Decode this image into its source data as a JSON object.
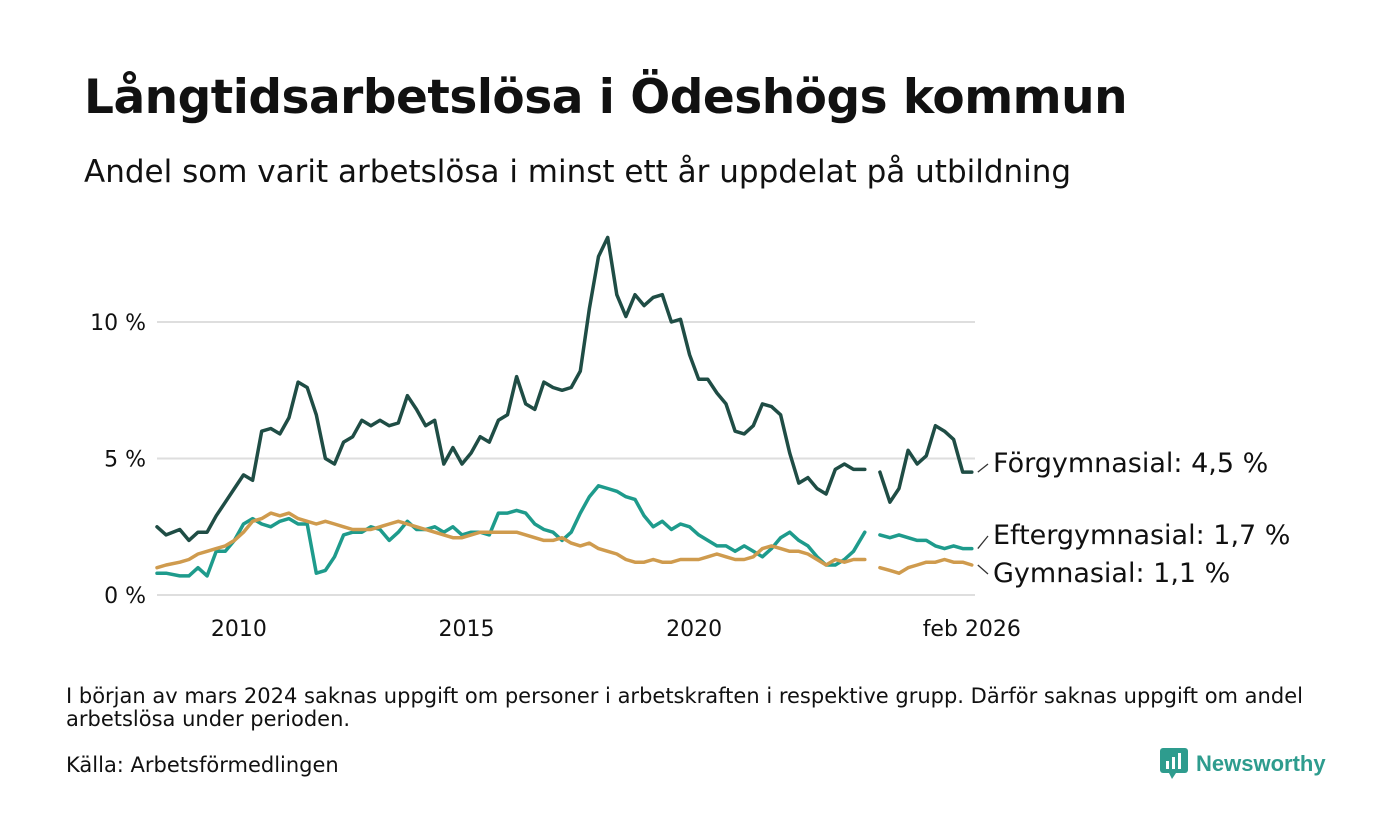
{
  "header": {
    "title": "Långtidsarbetslösa i Ödeshögs kommun",
    "subtitle": "Andel som varit arbetslösa i minst ett år uppdelat på utbildning"
  },
  "footer": {
    "note": "I början av mars 2024 saknas uppgift om personer i arbetskraften i respektive grupp. Därför saknas uppgift om andel arbetslösa under perioden.",
    "source": "Källa: Arbetsförmedlingen",
    "brand": "Newsworthy"
  },
  "chart_data": {
    "type": "line",
    "title": "Långtidsarbetslösa i Ödeshögs kommun",
    "subtitle": "Andel som varit arbetslösa i minst ett år uppdelat på utbildning",
    "xlabel": "",
    "ylabel": "",
    "xlim": [
      2008.2,
      2026.17
    ],
    "ylim": [
      0,
      13.5
    ],
    "grid": true,
    "legend": "direct labels at line ends",
    "y_ticks": [
      {
        "value": 0,
        "label": "0 %"
      },
      {
        "value": 5,
        "label": "5 %"
      },
      {
        "value": 10,
        "label": "10 %"
      }
    ],
    "x_ticks": [
      {
        "value": 2010,
        "label": "2010"
      },
      {
        "value": 2015,
        "label": "2015"
      },
      {
        "value": 2020,
        "label": "2020"
      },
      {
        "value": 2026.1,
        "label": "feb 2026"
      }
    ],
    "gap": [
      2023.75,
      2024.08
    ],
    "series": [
      {
        "name": "Förgymnasial",
        "end_label": "Förgymnasial: 4,5 %",
        "color": "#1f4d45",
        "points": [
          [
            2008.2,
            2.5
          ],
          [
            2008.4,
            2.2
          ],
          [
            2008.7,
            2.4
          ],
          [
            2008.9,
            2.0
          ],
          [
            2009.1,
            2.3
          ],
          [
            2009.3,
            2.3
          ],
          [
            2009.5,
            2.9
          ],
          [
            2009.7,
            3.4
          ],
          [
            2009.9,
            3.9
          ],
          [
            2010.1,
            4.4
          ],
          [
            2010.3,
            4.2
          ],
          [
            2010.5,
            6.0
          ],
          [
            2010.7,
            6.1
          ],
          [
            2010.9,
            5.9
          ],
          [
            2011.1,
            6.5
          ],
          [
            2011.3,
            7.8
          ],
          [
            2011.5,
            7.6
          ],
          [
            2011.7,
            6.6
          ],
          [
            2011.9,
            5.0
          ],
          [
            2012.1,
            4.8
          ],
          [
            2012.3,
            5.6
          ],
          [
            2012.5,
            5.8
          ],
          [
            2012.7,
            6.4
          ],
          [
            2012.9,
            6.2
          ],
          [
            2013.1,
            6.4
          ],
          [
            2013.3,
            6.2
          ],
          [
            2013.5,
            6.3
          ],
          [
            2013.7,
            7.3
          ],
          [
            2013.9,
            6.8
          ],
          [
            2014.1,
            6.2
          ],
          [
            2014.3,
            6.4
          ],
          [
            2014.5,
            4.8
          ],
          [
            2014.7,
            5.4
          ],
          [
            2014.9,
            4.8
          ],
          [
            2015.1,
            5.2
          ],
          [
            2015.3,
            5.8
          ],
          [
            2015.5,
            5.6
          ],
          [
            2015.7,
            6.4
          ],
          [
            2015.9,
            6.6
          ],
          [
            2016.1,
            8.0
          ],
          [
            2016.3,
            7.0
          ],
          [
            2016.5,
            6.8
          ],
          [
            2016.7,
            7.8
          ],
          [
            2016.9,
            7.6
          ],
          [
            2017.1,
            7.5
          ],
          [
            2017.3,
            7.6
          ],
          [
            2017.5,
            8.2
          ],
          [
            2017.7,
            10.5
          ],
          [
            2017.9,
            12.4
          ],
          [
            2018.1,
            13.1
          ],
          [
            2018.3,
            11.0
          ],
          [
            2018.5,
            10.2
          ],
          [
            2018.7,
            11.0
          ],
          [
            2018.9,
            10.6
          ],
          [
            2019.1,
            10.9
          ],
          [
            2019.3,
            11.0
          ],
          [
            2019.5,
            10.0
          ],
          [
            2019.7,
            10.1
          ],
          [
            2019.9,
            8.8
          ],
          [
            2020.1,
            7.9
          ],
          [
            2020.3,
            7.9
          ],
          [
            2020.5,
            7.4
          ],
          [
            2020.7,
            7.0
          ],
          [
            2020.9,
            6.0
          ],
          [
            2021.1,
            5.9
          ],
          [
            2021.3,
            6.2
          ],
          [
            2021.5,
            7.0
          ],
          [
            2021.7,
            6.9
          ],
          [
            2021.9,
            6.6
          ],
          [
            2022.1,
            5.2
          ],
          [
            2022.3,
            4.1
          ],
          [
            2022.5,
            4.3
          ],
          [
            2022.7,
            3.9
          ],
          [
            2022.9,
            3.7
          ],
          [
            2023.1,
            4.6
          ],
          [
            2023.3,
            4.8
          ],
          [
            2023.5,
            4.6
          ],
          [
            2023.75,
            4.6
          ],
          [
            2024.08,
            4.5
          ],
          [
            2024.3,
            3.4
          ],
          [
            2024.5,
            3.9
          ],
          [
            2024.7,
            5.3
          ],
          [
            2024.9,
            4.8
          ],
          [
            2025.1,
            5.1
          ],
          [
            2025.3,
            6.2
          ],
          [
            2025.5,
            6.0
          ],
          [
            2025.7,
            5.7
          ],
          [
            2025.9,
            4.5
          ],
          [
            2026.1,
            4.5
          ]
        ]
      },
      {
        "name": "Eftergymnasial",
        "end_label": "Eftergymnasial: 1,7 %",
        "color": "#1e9b8c",
        "points": [
          [
            2008.2,
            0.8
          ],
          [
            2008.4,
            0.8
          ],
          [
            2008.7,
            0.7
          ],
          [
            2008.9,
            0.7
          ],
          [
            2009.1,
            1.0
          ],
          [
            2009.3,
            0.7
          ],
          [
            2009.5,
            1.6
          ],
          [
            2009.7,
            1.6
          ],
          [
            2009.9,
            2.0
          ],
          [
            2010.1,
            2.6
          ],
          [
            2010.3,
            2.8
          ],
          [
            2010.5,
            2.6
          ],
          [
            2010.7,
            2.5
          ],
          [
            2010.9,
            2.7
          ],
          [
            2011.1,
            2.8
          ],
          [
            2011.3,
            2.6
          ],
          [
            2011.5,
            2.6
          ],
          [
            2011.7,
            0.8
          ],
          [
            2011.9,
            0.9
          ],
          [
            2012.1,
            1.4
          ],
          [
            2012.3,
            2.2
          ],
          [
            2012.5,
            2.3
          ],
          [
            2012.7,
            2.3
          ],
          [
            2012.9,
            2.5
          ],
          [
            2013.1,
            2.4
          ],
          [
            2013.3,
            2.0
          ],
          [
            2013.5,
            2.3
          ],
          [
            2013.7,
            2.7
          ],
          [
            2013.9,
            2.4
          ],
          [
            2014.1,
            2.4
          ],
          [
            2014.3,
            2.5
          ],
          [
            2014.5,
            2.3
          ],
          [
            2014.7,
            2.5
          ],
          [
            2014.9,
            2.2
          ],
          [
            2015.1,
            2.3
          ],
          [
            2015.3,
            2.3
          ],
          [
            2015.5,
            2.2
          ],
          [
            2015.7,
            3.0
          ],
          [
            2015.9,
            3.0
          ],
          [
            2016.1,
            3.1
          ],
          [
            2016.3,
            3.0
          ],
          [
            2016.5,
            2.6
          ],
          [
            2016.7,
            2.4
          ],
          [
            2016.9,
            2.3
          ],
          [
            2017.1,
            2.0
          ],
          [
            2017.3,
            2.3
          ],
          [
            2017.5,
            3.0
          ],
          [
            2017.7,
            3.6
          ],
          [
            2017.9,
            4.0
          ],
          [
            2018.1,
            3.9
          ],
          [
            2018.3,
            3.8
          ],
          [
            2018.5,
            3.6
          ],
          [
            2018.7,
            3.5
          ],
          [
            2018.9,
            2.9
          ],
          [
            2019.1,
            2.5
          ],
          [
            2019.3,
            2.7
          ],
          [
            2019.5,
            2.4
          ],
          [
            2019.7,
            2.6
          ],
          [
            2019.9,
            2.5
          ],
          [
            2020.1,
            2.2
          ],
          [
            2020.3,
            2.0
          ],
          [
            2020.5,
            1.8
          ],
          [
            2020.7,
            1.8
          ],
          [
            2020.9,
            1.6
          ],
          [
            2021.1,
            1.8
          ],
          [
            2021.3,
            1.6
          ],
          [
            2021.5,
            1.4
          ],
          [
            2021.7,
            1.7
          ],
          [
            2021.9,
            2.1
          ],
          [
            2022.1,
            2.3
          ],
          [
            2022.3,
            2.0
          ],
          [
            2022.5,
            1.8
          ],
          [
            2022.7,
            1.4
          ],
          [
            2022.9,
            1.1
          ],
          [
            2023.1,
            1.1
          ],
          [
            2023.3,
            1.3
          ],
          [
            2023.5,
            1.6
          ],
          [
            2023.75,
            2.3
          ],
          [
            2024.08,
            2.2
          ],
          [
            2024.3,
            2.1
          ],
          [
            2024.5,
            2.2
          ],
          [
            2024.7,
            2.1
          ],
          [
            2024.9,
            2.0
          ],
          [
            2025.1,
            2.0
          ],
          [
            2025.3,
            1.8
          ],
          [
            2025.5,
            1.7
          ],
          [
            2025.7,
            1.8
          ],
          [
            2025.9,
            1.7
          ],
          [
            2026.1,
            1.7
          ]
        ]
      },
      {
        "name": "Gymnasial",
        "end_label": "Gymnasial: 1,1 %",
        "color": "#cf9b4e",
        "points": [
          [
            2008.2,
            1.0
          ],
          [
            2008.4,
            1.1
          ],
          [
            2008.7,
            1.2
          ],
          [
            2008.9,
            1.3
          ],
          [
            2009.1,
            1.5
          ],
          [
            2009.3,
            1.6
          ],
          [
            2009.5,
            1.7
          ],
          [
            2009.7,
            1.8
          ],
          [
            2009.9,
            2.0
          ],
          [
            2010.1,
            2.3
          ],
          [
            2010.3,
            2.7
          ],
          [
            2010.5,
            2.8
          ],
          [
            2010.7,
            3.0
          ],
          [
            2010.9,
            2.9
          ],
          [
            2011.1,
            3.0
          ],
          [
            2011.3,
            2.8
          ],
          [
            2011.5,
            2.7
          ],
          [
            2011.7,
            2.6
          ],
          [
            2011.9,
            2.7
          ],
          [
            2012.1,
            2.6
          ],
          [
            2012.3,
            2.5
          ],
          [
            2012.5,
            2.4
          ],
          [
            2012.7,
            2.4
          ],
          [
            2012.9,
            2.4
          ],
          [
            2013.1,
            2.5
          ],
          [
            2013.3,
            2.6
          ],
          [
            2013.5,
            2.7
          ],
          [
            2013.7,
            2.6
          ],
          [
            2013.9,
            2.5
          ],
          [
            2014.1,
            2.4
          ],
          [
            2014.3,
            2.3
          ],
          [
            2014.5,
            2.2
          ],
          [
            2014.7,
            2.1
          ],
          [
            2014.9,
            2.1
          ],
          [
            2015.1,
            2.2
          ],
          [
            2015.3,
            2.3
          ],
          [
            2015.5,
            2.3
          ],
          [
            2015.7,
            2.3
          ],
          [
            2015.9,
            2.3
          ],
          [
            2016.1,
            2.3
          ],
          [
            2016.3,
            2.2
          ],
          [
            2016.5,
            2.1
          ],
          [
            2016.7,
            2.0
          ],
          [
            2016.9,
            2.0
          ],
          [
            2017.1,
            2.1
          ],
          [
            2017.3,
            1.9
          ],
          [
            2017.5,
            1.8
          ],
          [
            2017.7,
            1.9
          ],
          [
            2017.9,
            1.7
          ],
          [
            2018.1,
            1.6
          ],
          [
            2018.3,
            1.5
          ],
          [
            2018.5,
            1.3
          ],
          [
            2018.7,
            1.2
          ],
          [
            2018.9,
            1.2
          ],
          [
            2019.1,
            1.3
          ],
          [
            2019.3,
            1.2
          ],
          [
            2019.5,
            1.2
          ],
          [
            2019.7,
            1.3
          ],
          [
            2019.9,
            1.3
          ],
          [
            2020.1,
            1.3
          ],
          [
            2020.3,
            1.4
          ],
          [
            2020.5,
            1.5
          ],
          [
            2020.7,
            1.4
          ],
          [
            2020.9,
            1.3
          ],
          [
            2021.1,
            1.3
          ],
          [
            2021.3,
            1.4
          ],
          [
            2021.5,
            1.7
          ],
          [
            2021.7,
            1.8
          ],
          [
            2021.9,
            1.7
          ],
          [
            2022.1,
            1.6
          ],
          [
            2022.3,
            1.6
          ],
          [
            2022.5,
            1.5
          ],
          [
            2022.7,
            1.3
          ],
          [
            2022.9,
            1.1
          ],
          [
            2023.1,
            1.3
          ],
          [
            2023.3,
            1.2
          ],
          [
            2023.5,
            1.3
          ],
          [
            2023.75,
            1.3
          ],
          [
            2024.08,
            1.0
          ],
          [
            2024.3,
            0.9
          ],
          [
            2024.5,
            0.8
          ],
          [
            2024.7,
            1.0
          ],
          [
            2024.9,
            1.1
          ],
          [
            2025.1,
            1.2
          ],
          [
            2025.3,
            1.2
          ],
          [
            2025.5,
            1.3
          ],
          [
            2025.7,
            1.2
          ],
          [
            2025.9,
            1.2
          ],
          [
            2026.1,
            1.1
          ]
        ]
      }
    ]
  }
}
